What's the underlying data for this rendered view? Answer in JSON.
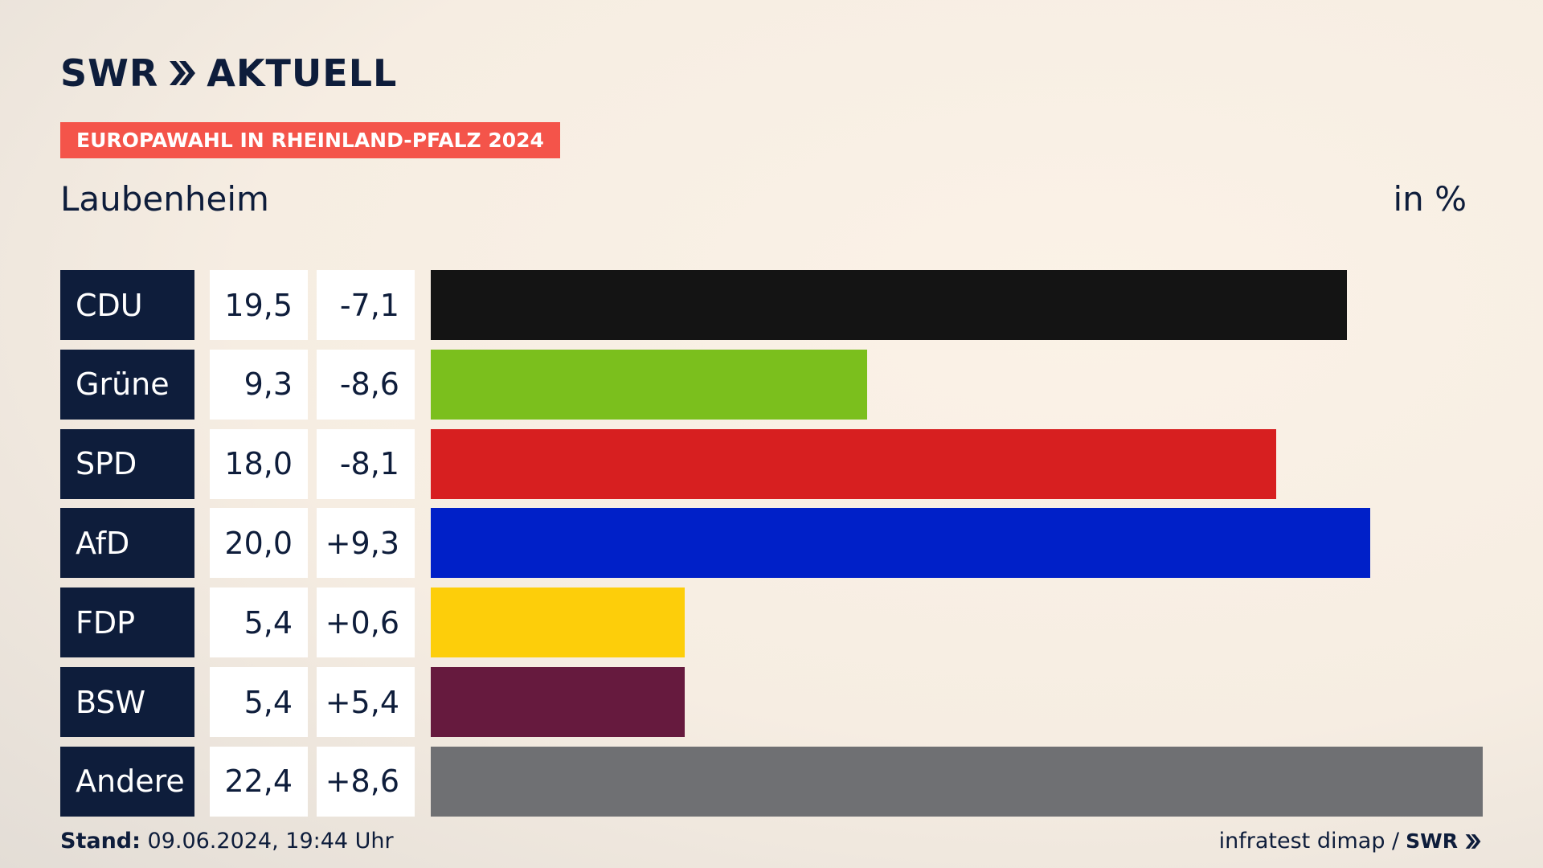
{
  "header": {
    "logo_text": "SWR",
    "logo_text2": "AKTUELL",
    "badge": "EUROPAWAHL IN RHEINLAND-PFALZ 2024",
    "place": "Laubenheim",
    "unit": "in %"
  },
  "footer": {
    "stand_label": "Stand:",
    "stand_value": "09.06.2024, 19:44 Uhr",
    "source": "infratest dimap /",
    "source_logo": "SWR"
  },
  "colors": {
    "brand_navy": "#0e1d3b",
    "badge_red": "#f4544a"
  },
  "chart_data": {
    "type": "bar",
    "orientation": "horizontal",
    "categories": [
      "CDU",
      "Grüne",
      "SPD",
      "AfD",
      "FDP",
      "BSW",
      "Andere"
    ],
    "values": [
      19.5,
      9.3,
      18.0,
      20.0,
      5.4,
      5.4,
      22.4
    ],
    "values_label": [
      "19,5",
      "9,3",
      "18,0",
      "20,0",
      "5,4",
      "5,4",
      "22,4"
    ],
    "diff_label": [
      "-7,1",
      "-8,6",
      "-8,1",
      "+9,3",
      "+0,6",
      "+5,4",
      "+8,6"
    ],
    "diff": [
      -7.1,
      -8.6,
      -8.1,
      9.3,
      0.6,
      5.4,
      8.6
    ],
    "bar_colors": [
      "#141414",
      "#7bbf1d",
      "#d71f20",
      "#0020c8",
      "#fdce0a",
      "#661a3e",
      "#6f7073"
    ],
    "xlim": [
      0,
      22.4
    ],
    "ylabel": "in %"
  }
}
